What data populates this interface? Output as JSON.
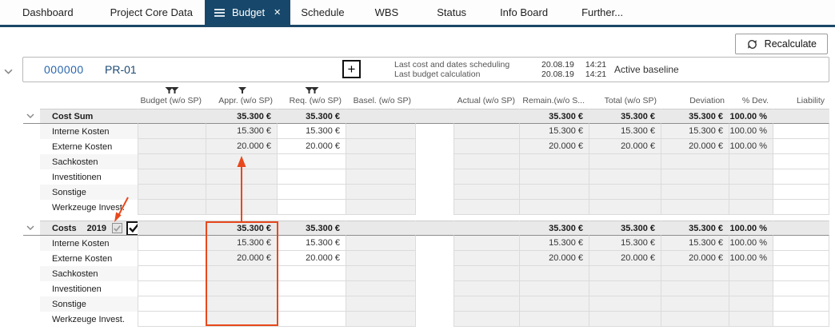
{
  "tabs": {
    "close_glyph": "✕",
    "items": [
      {
        "label": "Dashboard",
        "active": false
      },
      {
        "label": "Project Core Data",
        "active": false
      },
      {
        "label": "Budget",
        "active": true
      },
      {
        "label": "Schedule",
        "active": false
      },
      {
        "label": "WBS",
        "active": false
      },
      {
        "label": "Status",
        "active": false
      },
      {
        "label": "Info Board",
        "active": false
      },
      {
        "label": "Further...",
        "active": false
      }
    ]
  },
  "toolbar": {
    "recalculate_label": "Recalculate"
  },
  "project": {
    "number": "000000",
    "code": "PR-01",
    "add_button": "+",
    "info": [
      {
        "label": "Last cost and dates scheduling",
        "date": "20.08.19",
        "time": "14:21"
      },
      {
        "label": "Last budget calculation",
        "date": "20.08.19",
        "time": "14:21"
      }
    ],
    "baseline_status": "Active baseline"
  },
  "table": {
    "columns": [
      {
        "key": "budget",
        "label": "Budget (w/o SP)",
        "filter": "double"
      },
      {
        "key": "appr",
        "label": "Appr. (w/o SP)",
        "filter": "single"
      },
      {
        "key": "req",
        "label": "Req. (w/o SP)",
        "filter": "double"
      },
      {
        "key": "basel",
        "label": "Basel. (w/o SP)",
        "filter": null
      },
      {
        "key": "actual",
        "label": "Actual (w/o SP)",
        "filter": null
      },
      {
        "key": "remain",
        "label": "Remain.(w/o S...",
        "filter": null
      },
      {
        "key": "total",
        "label": "Total (w/o SP)",
        "filter": null
      },
      {
        "key": "deviation",
        "label": "Deviation",
        "filter": null
      },
      {
        "key": "pdev",
        "label": "% Dev.",
        "filter": null
      },
      {
        "key": "liability",
        "label": "Liability",
        "filter": null
      }
    ],
    "groups": [
      {
        "title": "Cost Sum",
        "year": "",
        "checkboxes": null,
        "budget_editable": false,
        "summary": {
          "budget": "",
          "appr": "35.300 €",
          "req": "35.300 €",
          "basel": "",
          "actual": "",
          "remain": "35.300 €",
          "total": "35.300 €",
          "deviation": "35.300 €",
          "pdev": "100.00 %",
          "liability": ""
        },
        "rows": [
          {
            "label": "Interne Kosten",
            "values": {
              "appr": "15.300 €",
              "req": "15.300 €",
              "remain": "15.300 €",
              "total": "15.300 €",
              "deviation": "15.300 €",
              "pdev": "100.00 %"
            }
          },
          {
            "label": "Externe Kosten",
            "values": {
              "appr": "20.000 €",
              "req": "20.000 €",
              "remain": "20.000 €",
              "total": "20.000 €",
              "deviation": "20.000 €",
              "pdev": "100.00 %"
            }
          },
          {
            "label": "Sachkosten",
            "values": {}
          },
          {
            "label": "Investitionen",
            "values": {}
          },
          {
            "label": "Sonstige",
            "values": {}
          },
          {
            "label": "Werkzeuge Invest.",
            "values": {}
          }
        ]
      },
      {
        "title": "Costs",
        "year": "2019",
        "checkboxes": [
          {
            "checked": true,
            "disabled": true
          },
          {
            "checked": true,
            "disabled": false
          }
        ],
        "budget_editable": true,
        "summary": {
          "budget": "",
          "appr": "35.300 €",
          "req": "35.300 €",
          "basel": "",
          "actual": "",
          "remain": "35.300 €",
          "total": "35.300 €",
          "deviation": "35.300 €",
          "pdev": "100.00 %",
          "liability": ""
        },
        "rows": [
          {
            "label": "Interne Kosten",
            "values": {
              "appr": "15.300 €",
              "req": "15.300 €",
              "remain": "15.300 €",
              "total": "15.300 €",
              "deviation": "15.300 €",
              "pdev": "100.00 %"
            }
          },
          {
            "label": "Externe Kosten",
            "values": {
              "appr": "20.000 €",
              "req": "20.000 €",
              "remain": "20.000 €",
              "total": "20.000 €",
              "deviation": "20.000 €",
              "pdev": "100.00 %"
            }
          },
          {
            "label": "Sachkosten",
            "values": {}
          },
          {
            "label": "Investitionen",
            "values": {}
          },
          {
            "label": "Sonstige",
            "values": {}
          },
          {
            "label": "Werkzeuge Invest.",
            "values": {}
          }
        ]
      }
    ]
  },
  "colors": {
    "accent_tab": "#17486B",
    "annotation": "#E8481C",
    "link_blue": "#2A66AE"
  }
}
